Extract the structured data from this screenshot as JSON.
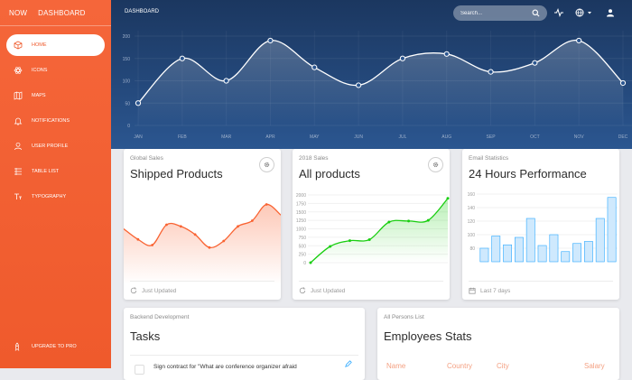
{
  "sidebar": {
    "brand_short": "NOW",
    "brand": "DASHBOARD",
    "items": [
      {
        "label": "HOME",
        "icon": "cube-icon",
        "active": true
      },
      {
        "label": "ICONS",
        "icon": "atom-icon",
        "active": false
      },
      {
        "label": "MAPS",
        "icon": "map-icon",
        "active": false
      },
      {
        "label": "NOTIFICATIONS",
        "icon": "bell-icon",
        "active": false
      },
      {
        "label": "USER PROFILE",
        "icon": "user-icon",
        "active": false
      },
      {
        "label": "TABLE LIST",
        "icon": "list-icon",
        "active": false
      },
      {
        "label": "TYPOGRAPHY",
        "icon": "text-icon",
        "active": false
      }
    ],
    "upgrade": "UPGRADE TO PRO"
  },
  "header": {
    "title": "DASHBOARD",
    "search_placeholder": "Search..."
  },
  "colors": {
    "accent": "#f96332",
    "hero_top": "#1b3760",
    "hero_bottom": "#2b5690",
    "green": "#18ce0f",
    "blue": "#2ca8ff"
  },
  "chart_data": [
    {
      "type": "line",
      "categories": [
        "JAN",
        "FEB",
        "MAR",
        "APR",
        "MAY",
        "JUN",
        "JUL",
        "AUG",
        "SEP",
        "OCT",
        "NOV",
        "DEC"
      ],
      "values": [
        50,
        150,
        100,
        190,
        130,
        90,
        150,
        160,
        120,
        140,
        190,
        95
      ],
      "yticks": [
        0,
        50,
        100,
        150,
        200
      ],
      "ylim": [
        0,
        200
      ],
      "grid": true
    },
    {
      "type": "area",
      "title": "Shipped Products",
      "category": "Global Sales",
      "values": [
        55,
        42,
        35,
        60,
        58,
        48,
        32,
        40,
        58,
        65,
        85,
        72
      ],
      "grid": false
    },
    {
      "type": "area",
      "title": "All products",
      "category": "2018 Sales",
      "values": [
        0,
        480,
        650,
        680,
        1200,
        1230,
        1250,
        1900
      ],
      "yticks": [
        0,
        250,
        500,
        750,
        1000,
        1250,
        1500,
        1750,
        2000
      ],
      "ylim": [
        0,
        2000
      ]
    },
    {
      "type": "bar",
      "title": "24 Hours Performance",
      "category": "Email Statistics",
      "values": [
        80,
        98,
        85,
        96,
        124,
        84,
        100,
        75,
        87,
        90,
        124,
        155
      ],
      "yticks": [
        80,
        100,
        120,
        140,
        160
      ],
      "ylim": [
        60,
        160
      ]
    }
  ],
  "cards": {
    "shipped": {
      "category": "Global Sales",
      "title": "Shipped Products",
      "footer": "Just Updated"
    },
    "products": {
      "category": "2018 Sales",
      "title": "All products",
      "footer": "Just Updated"
    },
    "email": {
      "category": "Email Statistics",
      "title": "24 Hours Performance",
      "footer": "Last 7 days"
    },
    "tasks": {
      "category": "Backend Development",
      "title": "Tasks",
      "row1": "Sign contract for \"What are conference organizer afraid"
    },
    "employees": {
      "category": "All Persons List",
      "title": "Employees Stats",
      "headers": [
        "Name",
        "Country",
        "City",
        "Salary"
      ]
    }
  }
}
